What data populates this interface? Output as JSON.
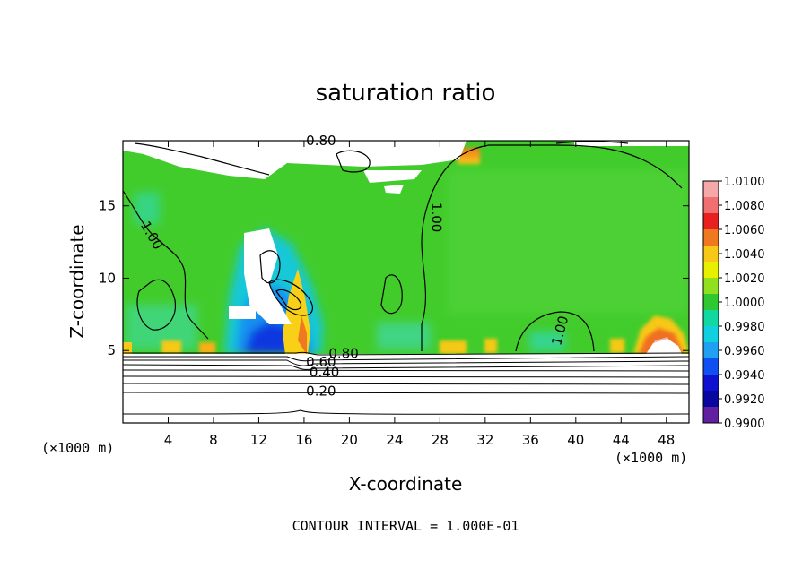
{
  "chart_data": {
    "type": "heatmap",
    "title": "saturation ratio",
    "xlabel": "X-coordinate",
    "ylabel": "Z-coordinate",
    "x_unit": "(×1000 m)",
    "y_unit": "(×1000 m)",
    "footer": "CONTOUR INTERVAL = 1.000E-01",
    "xlim": [
      0,
      50
    ],
    "ylim": [
      0,
      19.5
    ],
    "x_ticks": [
      4,
      8,
      12,
      16,
      20,
      24,
      28,
      32,
      36,
      40,
      44,
      48
    ],
    "y_ticks": [
      5,
      10,
      15
    ],
    "colorbar": {
      "min": 0.99,
      "max": 1.01,
      "labels": [
        "1.0100",
        "1.0080",
        "1.0060",
        "1.0040",
        "1.0020",
        "1.0000",
        "0.9980",
        "0.9960",
        "0.9940",
        "0.9920",
        "0.9900"
      ],
      "colors": [
        "#f4a8a8",
        "#f07070",
        "#e82020",
        "#f07820",
        "#f8c818",
        "#e8f000",
        "#90e020",
        "#30c830",
        "#10d8a0",
        "#10d0e0",
        "#20a0f0",
        "#1050f0",
        "#1010d0",
        "#0808a0",
        "#6020a0"
      ]
    },
    "contour_labels": [
      {
        "text": "0.80",
        "x": 17.5,
        "y": 19.2
      },
      {
        "text": "1.00",
        "x": 2.2,
        "y": 12.8
      },
      {
        "text": "1.00",
        "x": 27.3,
        "y": 14.2
      },
      {
        "text": "1.00",
        "x": 39.0,
        "y": 6.3
      },
      {
        "text": "0.80",
        "x": 19.5,
        "y": 4.5
      },
      {
        "text": "0.60",
        "x": 17.5,
        "y": 3.9
      },
      {
        "text": "0.40",
        "x": 17.8,
        "y": 3.2
      },
      {
        "text": "0.20",
        "x": 17.5,
        "y": 1.9
      }
    ]
  }
}
